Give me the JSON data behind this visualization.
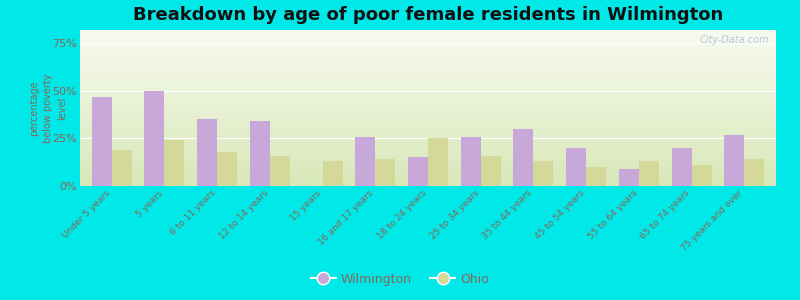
{
  "title": "Breakdown by age of poor female residents in Wilmington",
  "categories": [
    "Under 5 years",
    "5 years",
    "6 to 11 years",
    "12 to 14 years",
    "15 years",
    "16 and 17 years",
    "18 to 24 years",
    "25 to 34 years",
    "35 to 44 years",
    "45 to 54 years",
    "55 to 64 years",
    "65 to 74 years",
    "75 years and over"
  ],
  "wilmington_values": [
    47,
    50,
    35,
    34,
    0,
    26,
    15,
    26,
    30,
    20,
    9,
    20,
    27
  ],
  "ohio_values": [
    19,
    24,
    18,
    16,
    13,
    14,
    25,
    16,
    13,
    10,
    13,
    11,
    14
  ],
  "wilmington_color": "#c8a8d8",
  "ohio_color": "#d4d898",
  "outer_background": "#00e8e8",
  "grad_top": "#f8faf0",
  "grad_bottom": "#d8e8b8",
  "ylabel": "percentage\nbelow poverty\nlevel",
  "yticks": [
    0,
    25,
    50,
    75
  ],
  "ytick_labels": [
    "0%",
    "25%",
    "50%",
    "75%"
  ],
  "ylim": [
    0,
    82
  ],
  "title_fontsize": 13,
  "bar_width": 0.38,
  "legend_labels": [
    "Wilmington",
    "Ohio"
  ],
  "tick_color": "#886655",
  "title_color": "#111111",
  "watermark": "City-Data.com"
}
